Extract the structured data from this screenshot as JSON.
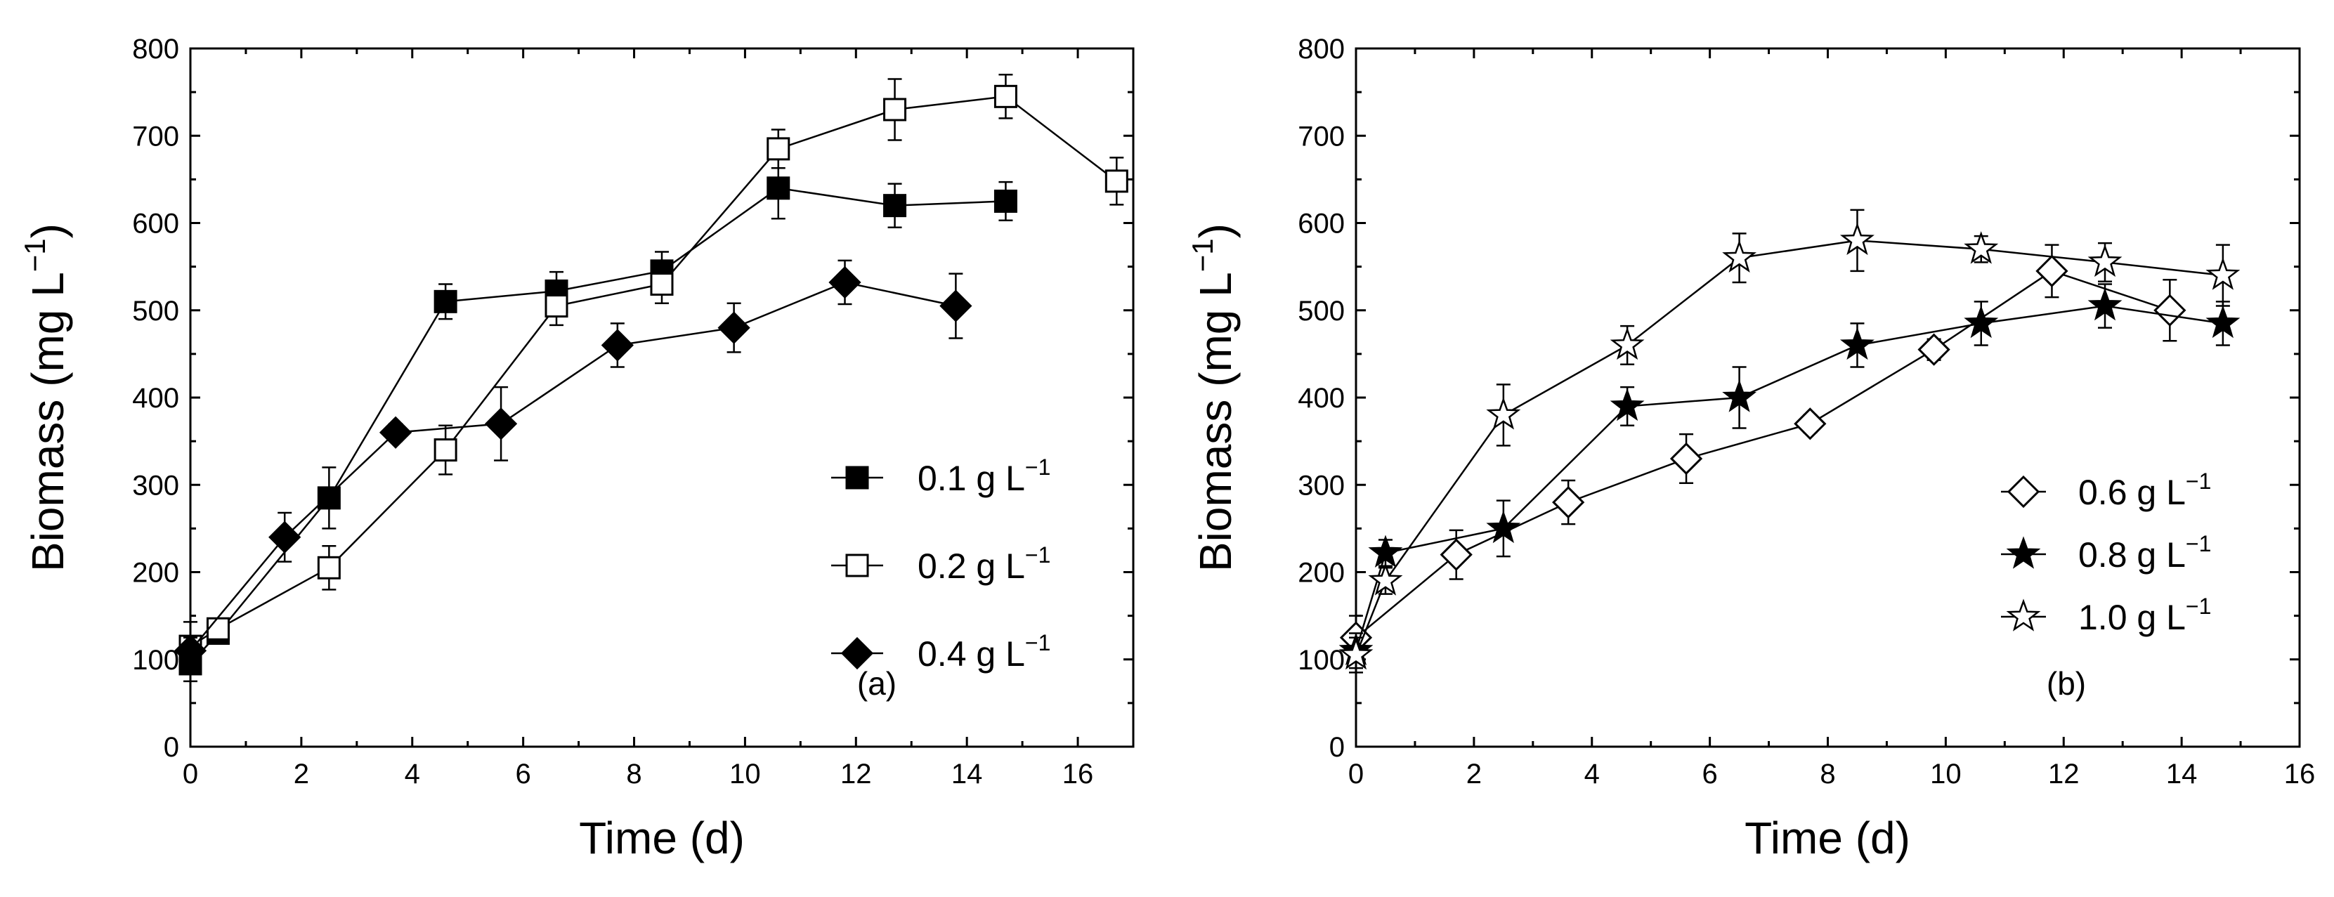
{
  "chart_data": [
    {
      "type": "line",
      "panel_label": "(a)",
      "xlabel": "Time (d)",
      "ylabel": "Biomass (mg L",
      "ylabel_sup": "−1",
      "ylabel_close": ")",
      "xlim": [
        0,
        17
      ],
      "ylim": [
        0,
        800
      ],
      "xticks": [
        0,
        2,
        4,
        6,
        8,
        10,
        12,
        14,
        16
      ],
      "xtick_labels": [
        "0",
        "2",
        "4",
        "6",
        "8",
        "10",
        "12",
        "14",
        "16"
      ],
      "yticks": [
        0,
        100,
        200,
        300,
        400,
        500,
        600,
        700,
        800
      ],
      "ytick_labels": [
        "0",
        "100",
        "200",
        "300",
        "400",
        "500",
        "600",
        "700",
        "800"
      ],
      "legend_position": "center-right",
      "series": [
        {
          "name": "0.1 g L",
          "sup": "−1",
          "marker": "square-filled",
          "x": [
            0,
            0.5,
            2.5,
            4.6,
            6.6,
            8.5,
            10.6,
            12.7,
            14.7
          ],
          "y": [
            95,
            130,
            285,
            510,
            522,
            545,
            640,
            620,
            625
          ],
          "err": [
            20,
            10,
            35,
            20,
            22,
            22,
            35,
            25,
            22
          ]
        },
        {
          "name": "0.2 g L",
          "sup": "−1",
          "marker": "square-open",
          "x": [
            0,
            0.5,
            2.5,
            4.6,
            6.6,
            8.5,
            10.6,
            12.7,
            14.7,
            16.7
          ],
          "y": [
            115,
            135,
            205,
            340,
            505,
            530,
            685,
            730,
            745,
            648
          ],
          "err": [
            28,
            12,
            25,
            28,
            22,
            22,
            22,
            35,
            25,
            27
          ]
        },
        {
          "name": "0.4 g L",
          "sup": "−1",
          "marker": "diamond-filled",
          "x": [
            0,
            1.7,
            3.7,
            5.6,
            7.7,
            9.8,
            11.8,
            13.8
          ],
          "y": [
            110,
            240,
            360,
            370,
            460,
            480,
            532,
            505
          ],
          "err": [
            15,
            28,
            10,
            42,
            25,
            28,
            25,
            37
          ]
        }
      ]
    },
    {
      "type": "line",
      "panel_label": "(b)",
      "xlabel": "Time (d)",
      "ylabel": "Biomass (mg L",
      "ylabel_sup": "−1",
      "ylabel_close": ")",
      "xlim": [
        0,
        16
      ],
      "ylim": [
        0,
        800
      ],
      "xticks": [
        0,
        2,
        4,
        6,
        8,
        10,
        12,
        14,
        16
      ],
      "xtick_labels": [
        "0",
        "2",
        "4",
        "6",
        "8",
        "10",
        "12",
        "14",
        "16"
      ],
      "yticks": [
        0,
        100,
        200,
        300,
        400,
        500,
        600,
        700,
        800
      ],
      "ytick_labels": [
        "0",
        "100",
        "200",
        "300",
        "400",
        "500",
        "600",
        "700",
        "800"
      ],
      "legend_position": "lower-right",
      "series": [
        {
          "name": "0.6 g L",
          "sup": "−1",
          "marker": "diamond-open",
          "x": [
            0,
            1.7,
            3.6,
            5.6,
            7.7,
            9.8,
            11.8,
            13.8
          ],
          "y": [
            125,
            220,
            280,
            330,
            370,
            455,
            545,
            500
          ],
          "err": [
            25,
            28,
            25,
            28,
            10,
            12,
            30,
            35
          ]
        },
        {
          "name": "0.8 g L",
          "sup": "−1",
          "marker": "star-filled",
          "x": [
            0,
            0.5,
            2.5,
            4.6,
            6.5,
            8.5,
            10.6,
            12.7,
            14.7
          ],
          "y": [
            110,
            222,
            250,
            390,
            400,
            460,
            485,
            505,
            485
          ],
          "err": [
            20,
            15,
            32,
            22,
            35,
            25,
            25,
            25,
            25
          ]
        },
        {
          "name": "1.0 g L",
          "sup": "−1",
          "marker": "star-open",
          "x": [
            0,
            0.5,
            2.5,
            4.6,
            6.5,
            8.5,
            10.6,
            12.7,
            14.7
          ],
          "y": [
            105,
            190,
            380,
            460,
            560,
            580,
            570,
            555,
            540
          ],
          "err": [
            20,
            15,
            35,
            22,
            28,
            35,
            15,
            22,
            35
          ]
        }
      ]
    }
  ]
}
